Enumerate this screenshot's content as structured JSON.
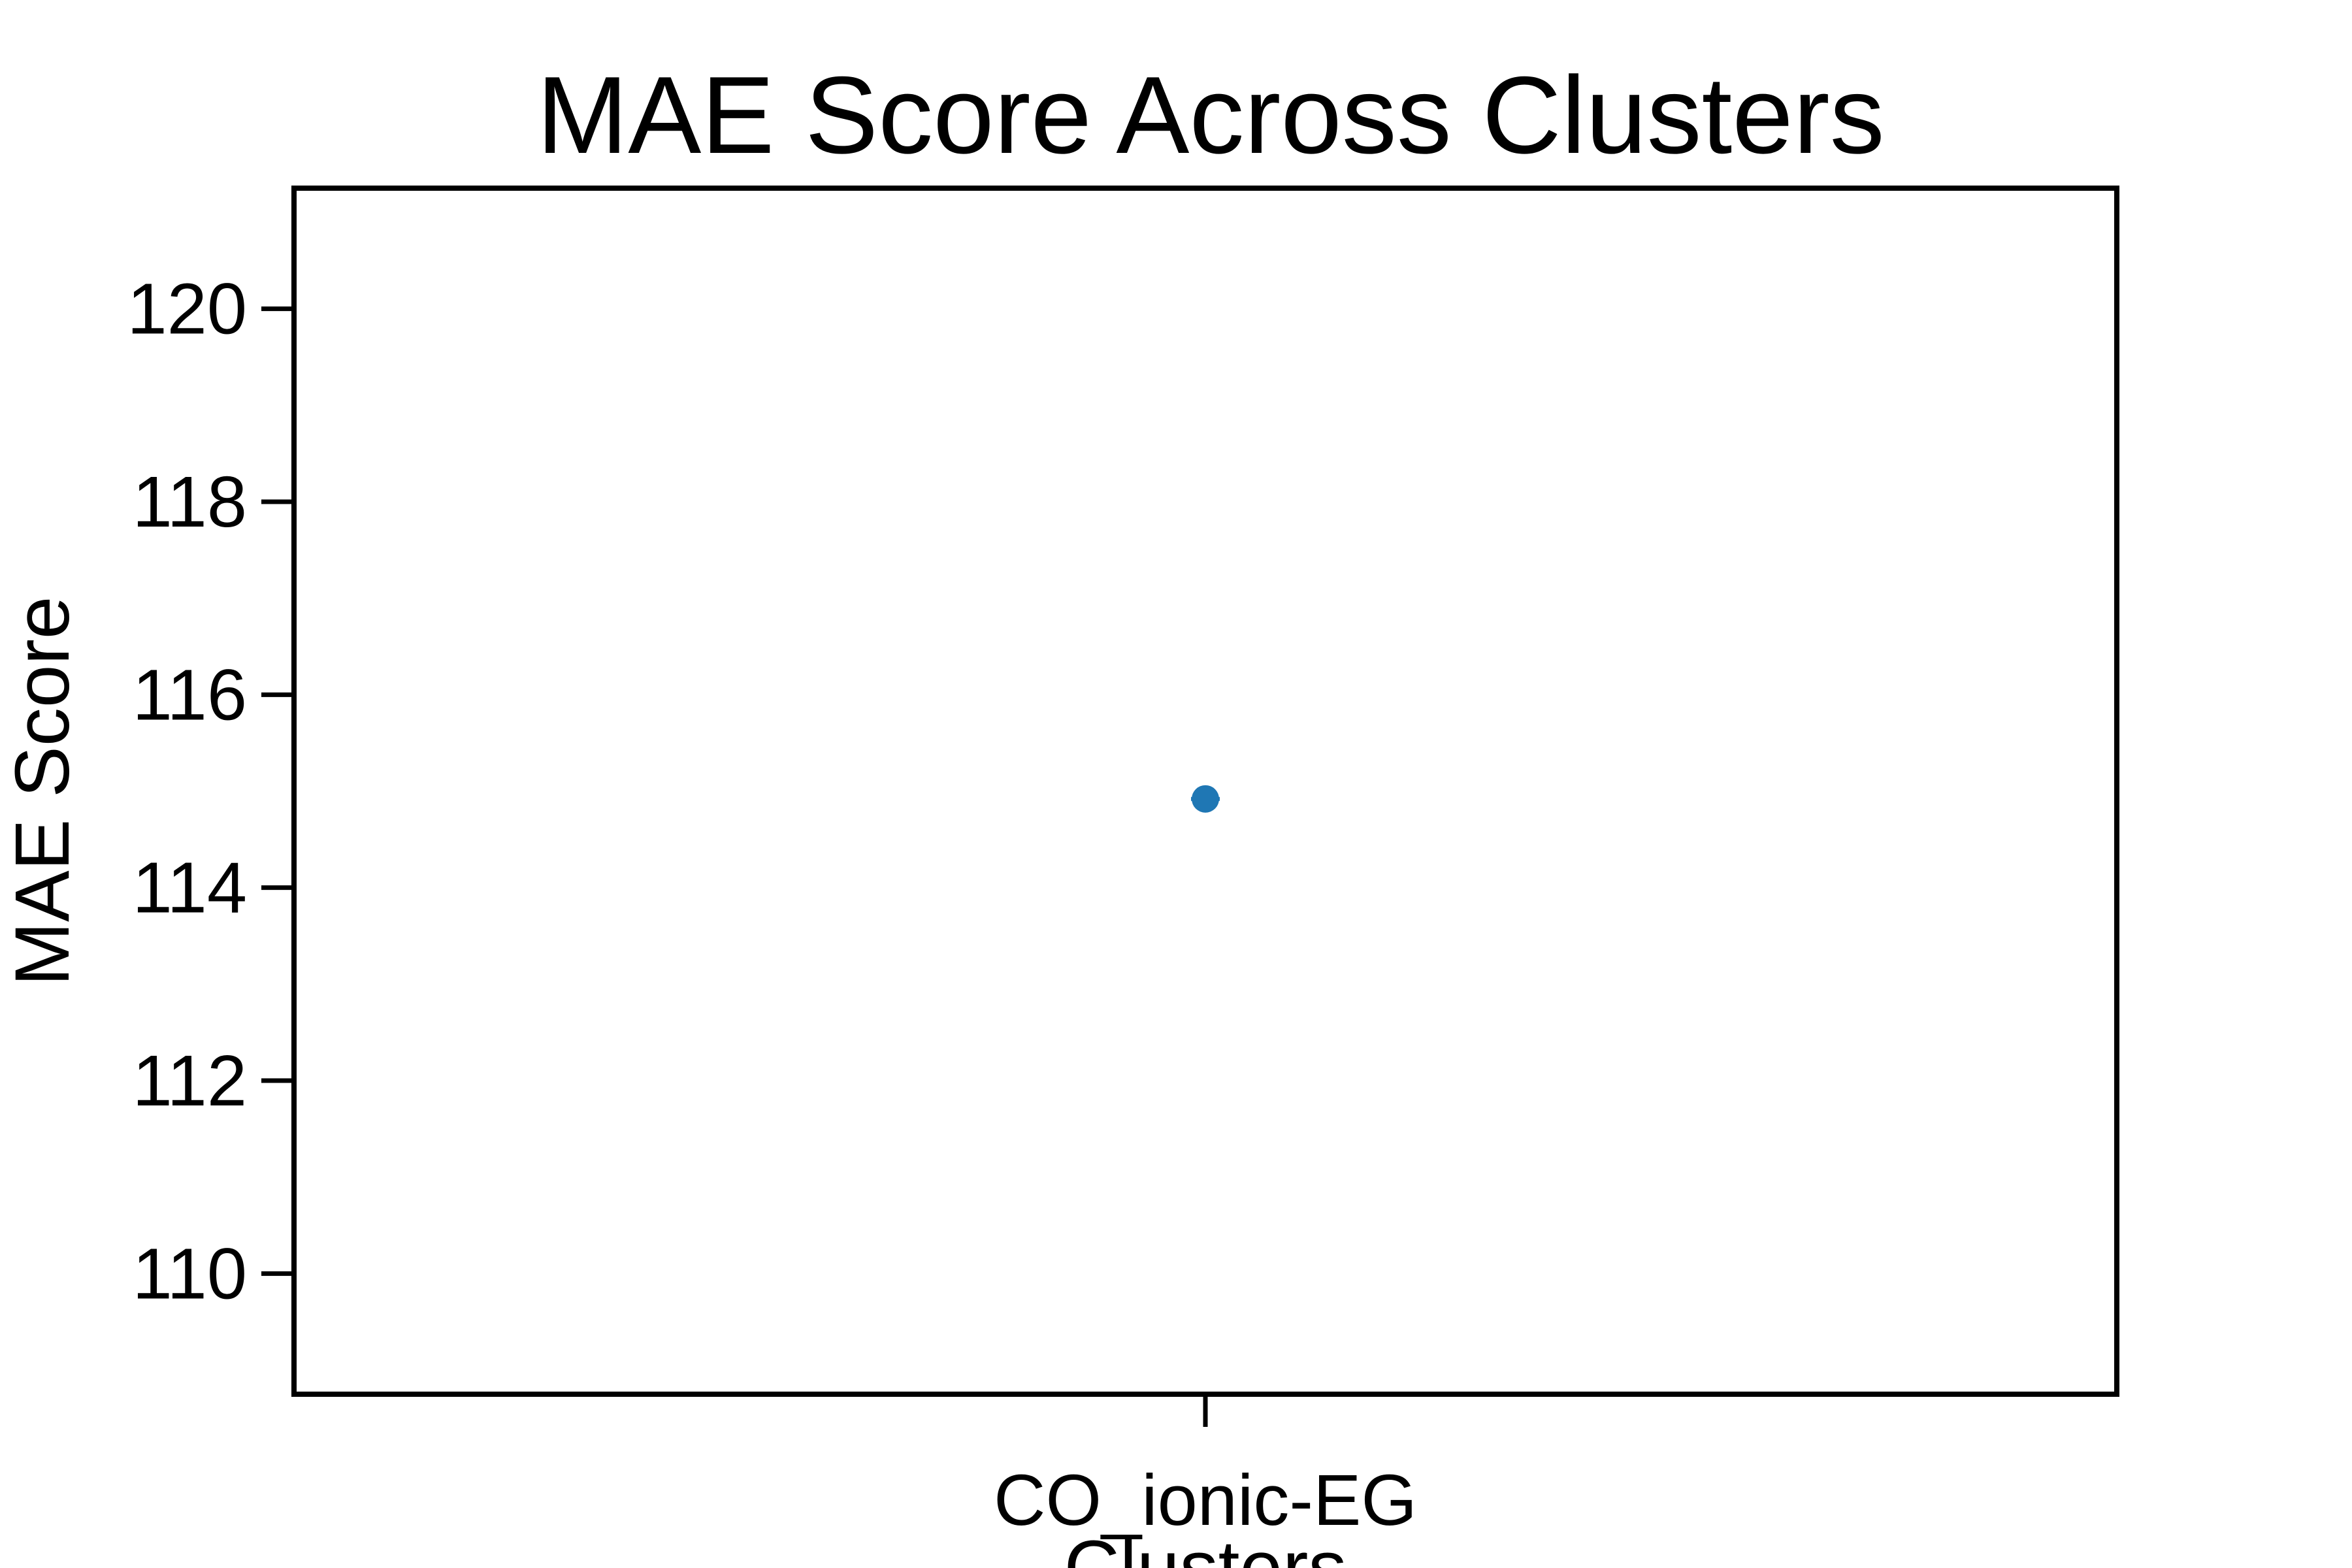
{
  "chart_data": {
    "type": "scatter",
    "title": "MAE Score Across Clusters",
    "xlabel": "Clusters",
    "ylabel": "MAE Score",
    "categories": [
      "CO_ionic-EG"
    ],
    "series": [
      {
        "values": [
          114.92
        ],
        "color": "#1f77b4"
      }
    ],
    "ylim": [
      108.75,
      121.25
    ],
    "yticks": [
      110,
      112,
      114,
      116,
      118,
      120
    ],
    "grid": false,
    "legend": "none"
  }
}
